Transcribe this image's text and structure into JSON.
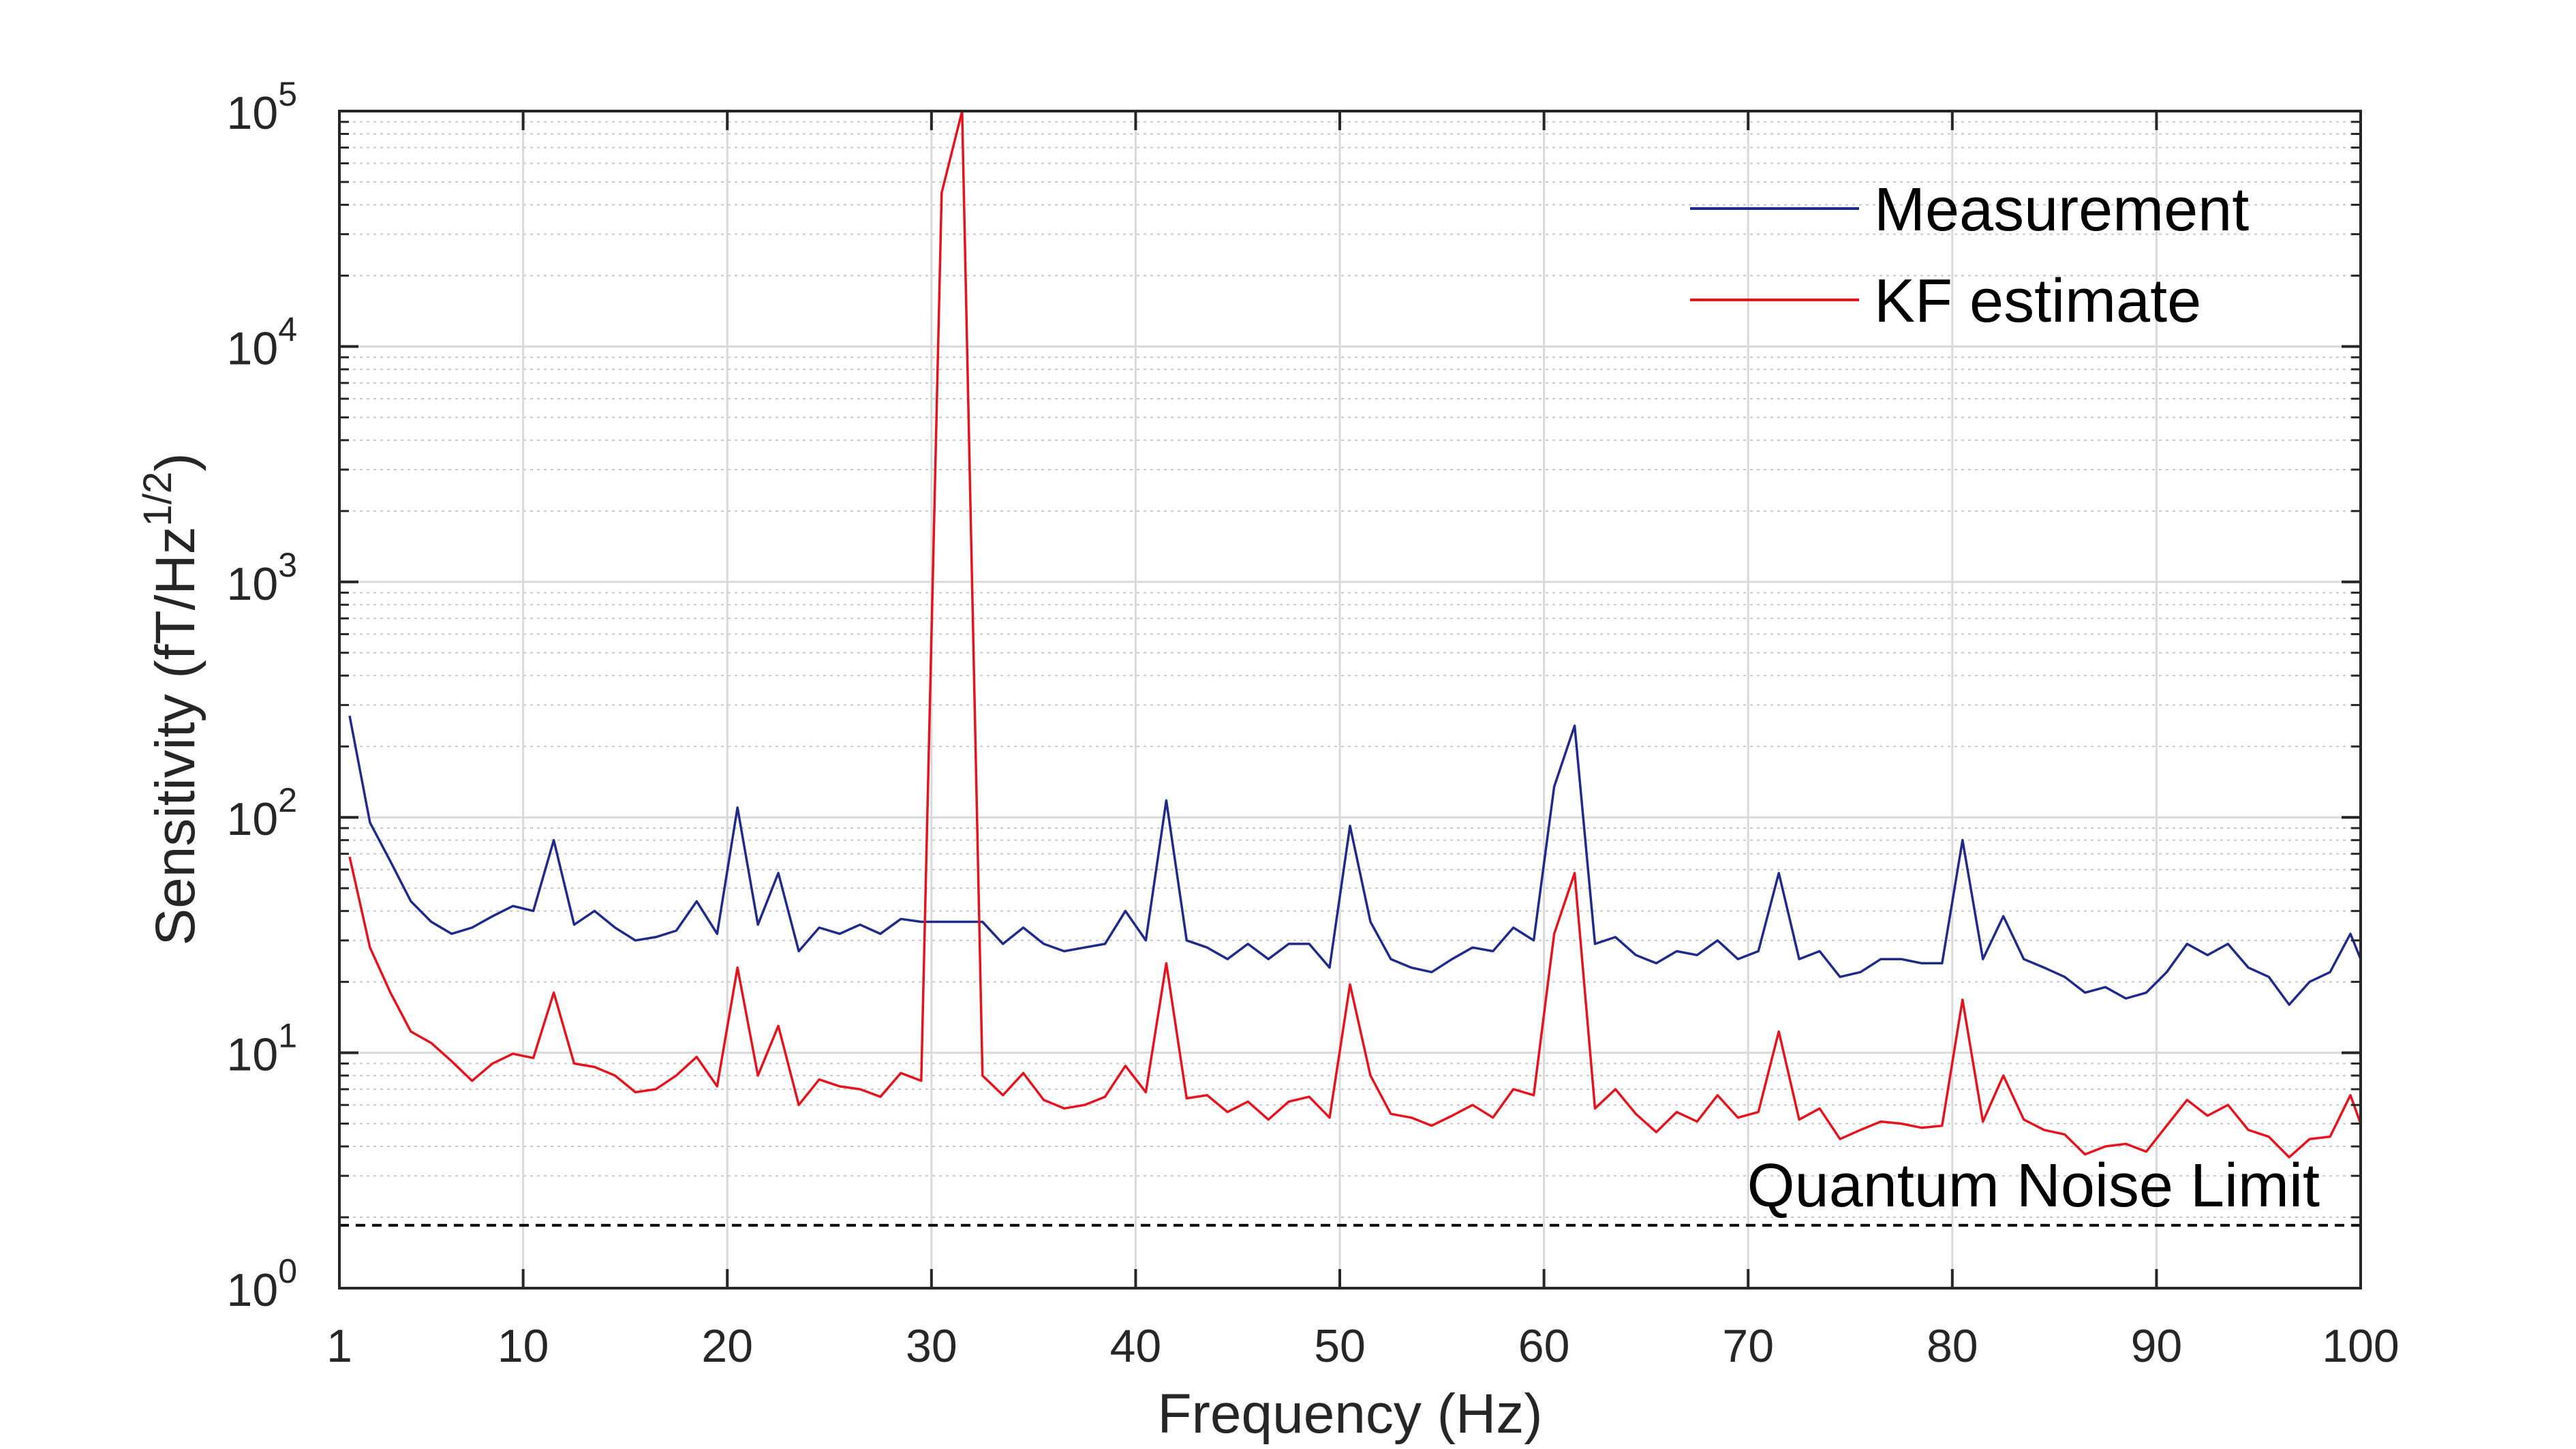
{
  "chart_data": {
    "type": "line",
    "xlabel": "Frequency (Hz)",
    "ylabel": "Sensitivity (fT/Hz1/2)",
    "ylabel_parts": {
      "base": "Sensitivity (fT/Hz",
      "sup": "1/2",
      "end": ")"
    },
    "xlim": [
      1,
      100
    ],
    "ylim": [
      1,
      100000
    ],
    "yscale": "log",
    "grid": true,
    "minor_grid": true,
    "legend_position": "top-right",
    "xticks": [
      "1",
      "10",
      "20",
      "30",
      "40",
      "50",
      "60",
      "70",
      "80",
      "90",
      "100"
    ],
    "xtick_values": [
      1,
      10,
      20,
      30,
      40,
      50,
      60,
      70,
      80,
      90,
      100
    ],
    "yticks": [
      {
        "value": 1,
        "base": "10",
        "exp": "0"
      },
      {
        "value": 10,
        "base": "10",
        "exp": "1"
      },
      {
        "value": 100,
        "base": "10",
        "exp": "2"
      },
      {
        "value": 1000,
        "base": "10",
        "exp": "3"
      },
      {
        "value": 10000,
        "base": "10",
        "exp": "4"
      },
      {
        "value": 100000,
        "base": "10",
        "exp": "5"
      }
    ],
    "x": [
      1.5,
      2.5,
      3.5,
      4.5,
      5.5,
      6.5,
      7.5,
      8.5,
      9.5,
      10.5,
      11.5,
      12.5,
      13.5,
      14.5,
      15.5,
      16.5,
      17.5,
      18.5,
      19.5,
      20.5,
      21.5,
      22.5,
      23.5,
      24.5,
      25.5,
      26.5,
      27.5,
      28.5,
      29.5,
      30.5,
      31.5,
      32.5,
      33.5,
      34.5,
      35.5,
      36.5,
      37.5,
      38.5,
      39.5,
      40.5,
      41.5,
      42.5,
      43.5,
      44.5,
      45.5,
      46.5,
      47.5,
      48.5,
      49.5,
      50.5,
      51.5,
      52.5,
      53.5,
      54.5,
      55.5,
      56.5,
      57.5,
      58.5,
      59.5,
      60.5,
      61.5,
      62.5,
      63.5,
      64.5,
      65.5,
      66.5,
      67.5,
      68.5,
      69.5,
      70.5,
      71.5,
      72.5,
      73.5,
      74.5,
      75.5,
      76.5,
      77.5,
      78.5,
      79.5,
      80.5,
      81.5,
      82.5,
      83.5,
      84.5,
      85.5,
      86.5,
      87.5,
      88.5,
      89.5,
      90.5,
      91.5,
      92.5,
      93.5,
      94.5,
      95.5,
      96.5,
      97.5,
      98.5,
      99.5,
      100
    ],
    "series": [
      {
        "name": "Measurement",
        "color": "#1f2a8a",
        "values": [
          270,
          95,
          65,
          44,
          36,
          32,
          34,
          38,
          42,
          40,
          80,
          35,
          40,
          34,
          30,
          31,
          33,
          44,
          32,
          110,
          35,
          58,
          27,
          34,
          32,
          35,
          32,
          37,
          36,
          36,
          36,
          36,
          29,
          34,
          29,
          27,
          28,
          29,
          40,
          30,
          118,
          30,
          28,
          25,
          29,
          25,
          29,
          29,
          23,
          92,
          36,
          25,
          23,
          22,
          25,
          28,
          27,
          34,
          30,
          135,
          245,
          29,
          31,
          26,
          24,
          27,
          26,
          30,
          25,
          27,
          58,
          25,
          27,
          21,
          22,
          25,
          25,
          24,
          24,
          80,
          25,
          38,
          25,
          23,
          21,
          18,
          19,
          17,
          18,
          22,
          29,
          26,
          29,
          23,
          21,
          16,
          20,
          22,
          32,
          25
        ]
      },
      {
        "name": "KF estimate",
        "color": "#e3141e",
        "values": [
          68,
          28,
          18,
          12.3,
          11,
          9.2,
          7.6,
          9,
          9.9,
          9.5,
          18,
          9,
          8.7,
          8,
          6.8,
          7,
          8,
          9.6,
          7.2,
          23,
          8,
          13,
          6,
          7.7,
          7.2,
          7,
          6.5,
          8.2,
          7.6,
          45000,
          100000,
          8,
          6.6,
          8.2,
          6.3,
          5.8,
          6,
          6.5,
          8.8,
          6.8,
          24,
          6.4,
          6.6,
          5.6,
          6.2,
          5.2,
          6.2,
          6.5,
          5.3,
          19.5,
          8,
          5.5,
          5.3,
          4.9,
          5.4,
          6,
          5.3,
          7,
          6.6,
          32,
          58,
          5.8,
          7,
          5.5,
          4.6,
          5.6,
          5.1,
          6.6,
          5.3,
          5.6,
          12.3,
          5.2,
          5.8,
          4.3,
          4.7,
          5.1,
          5,
          4.8,
          4.9,
          16.8,
          5.1,
          8,
          5.2,
          4.7,
          4.5,
          3.7,
          4,
          4.1,
          3.8,
          4.9,
          6.3,
          5.4,
          6,
          4.7,
          4.4,
          3.6,
          4.3,
          4.4,
          6.6,
          5
        ]
      }
    ],
    "reference_line": {
      "label": "Quantum Noise Limit",
      "value": 1.85,
      "style": "dashed",
      "color": "#000000"
    }
  }
}
